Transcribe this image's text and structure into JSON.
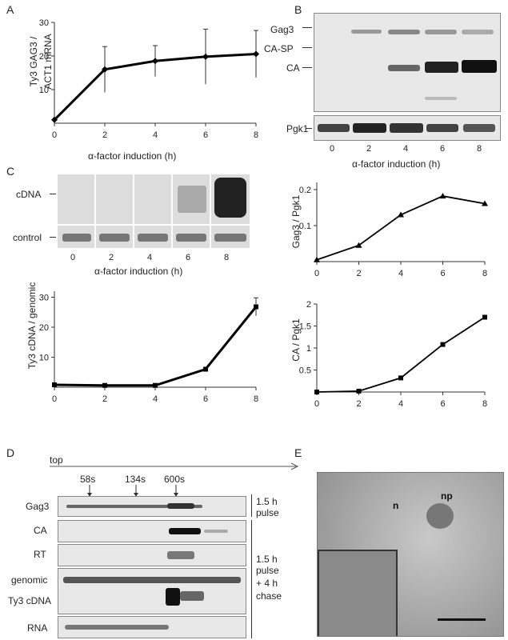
{
  "panels": {
    "a": {
      "letter": "A",
      "ylabel_line1": "Ty3 GAG3 /",
      "ylabel_line2": "ACT1 mRNA",
      "xlabel": "α-factor induction (h)"
    },
    "b": {
      "letter": "B",
      "band_labels": [
        "Gag3",
        "CA-SP",
        "CA"
      ],
      "loading_label": "Pgk1",
      "lanes": [
        "0",
        "2",
        "4",
        "6",
        "8"
      ],
      "xlabel": "α-factor induction (h)"
    },
    "c": {
      "letter": "C",
      "blot_labels": [
        "cDNA",
        "control"
      ],
      "lanes": [
        "0",
        "2",
        "4",
        "6",
        "8"
      ],
      "xlabel": "α-factor induction (h)",
      "ylabel": "Ty3 cDNA / genomic"
    },
    "b_quant": {
      "gag_ylabel": "Gag3 / Pgk1",
      "ca_ylabel": "CA / Pgk1",
      "xlabel": "α-factor induction (h)"
    },
    "d": {
      "letter": "D",
      "top_label": "top",
      "markers": [
        "58s",
        "134s",
        "600s"
      ],
      "row_labels": [
        "Gag3",
        "CA",
        "RT",
        "genomic",
        "Ty3 cDNA",
        "RNA"
      ],
      "pulse_label_1": "1.5 h",
      "pulse_label_2": "pulse",
      "chase_label_1": "1.5 h",
      "chase_label_2": "pulse",
      "chase_label_3": "+ 4 h",
      "chase_label_4": "chase"
    },
    "e": {
      "letter": "E",
      "labels": [
        "n",
        "np"
      ]
    }
  },
  "chart_data": [
    {
      "type": "line",
      "name": "A",
      "x": [
        0,
        2,
        4,
        6,
        8
      ],
      "y": [
        1,
        16,
        18.5,
        19.8,
        20.6
      ],
      "err": [
        0,
        6.8,
        4.6,
        8.2,
        7
      ],
      "xticks": [
        0,
        2,
        4,
        6,
        8
      ],
      "yticks": [
        10,
        20,
        30
      ],
      "ylim": [
        0,
        30
      ],
      "xlim": [
        0,
        8
      ],
      "marker": "diamond"
    },
    {
      "type": "line",
      "name": "Gag3/Pgk1",
      "x": [
        0,
        2,
        4,
        6,
        8
      ],
      "y": [
        0.005,
        0.045,
        0.13,
        0.182,
        0.161
      ],
      "xticks": [
        0,
        2,
        4,
        6,
        8
      ],
      "yticks": [
        0.1,
        0.2
      ],
      "ylim": [
        0,
        0.22
      ],
      "marker": "triangle"
    },
    {
      "type": "line",
      "name": "Ty3 cDNA/genomic",
      "x": [
        0,
        2,
        4,
        6,
        8
      ],
      "y": [
        0.8,
        0.6,
        0.6,
        6,
        26.8
      ],
      "err": [
        0,
        0,
        0,
        0,
        3
      ],
      "xticks": [
        0,
        2,
        4,
        6,
        8
      ],
      "yticks": [
        10,
        20,
        30
      ],
      "ylim": [
        0,
        32
      ],
      "marker": "square"
    },
    {
      "type": "line",
      "name": "CA/Pgk1",
      "x": [
        0,
        2,
        4,
        6,
        8
      ],
      "y": [
        0,
        0.02,
        0.32,
        1.08,
        1.7
      ],
      "xticks": [
        0,
        2,
        4,
        6,
        8
      ],
      "yticks": [
        0.5,
        1.0,
        1.5,
        2.0
      ],
      "ylim": [
        0,
        2.0
      ],
      "marker": "square"
    }
  ]
}
